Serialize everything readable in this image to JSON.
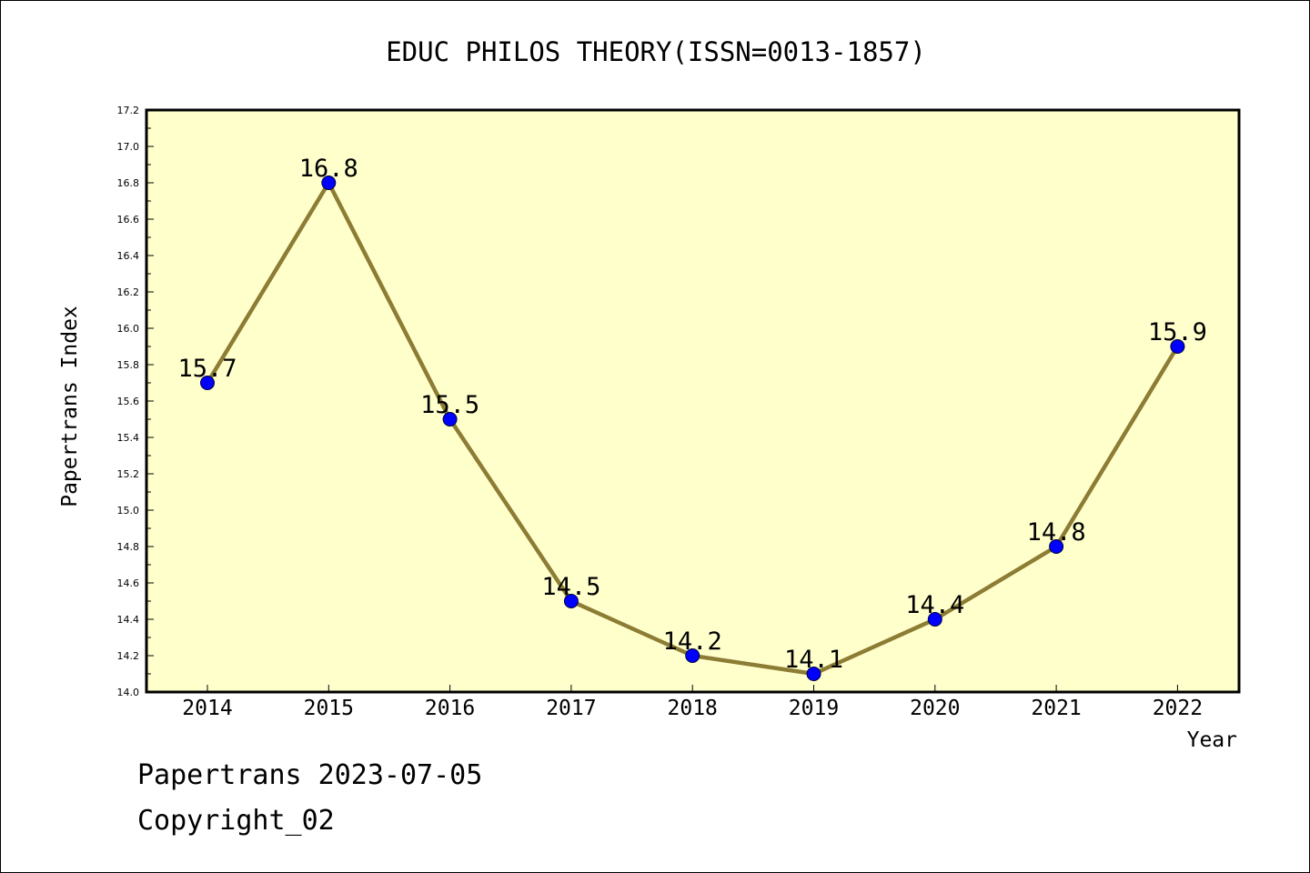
{
  "chart_data": {
    "type": "line",
    "title": "EDUC PHILOS THEORY(ISSN=0013-1857)",
    "xlabel": "Year",
    "ylabel": "Papertrans Index",
    "categories": [
      "2014",
      "2015",
      "2016",
      "2017",
      "2018",
      "2019",
      "2020",
      "2021",
      "2022"
    ],
    "series": [
      {
        "values": [
          15.7,
          16.8,
          15.5,
          14.5,
          14.2,
          14.1,
          14.4,
          14.8,
          15.9
        ],
        "data_labels": [
          "15.7",
          "16.8",
          "15.5",
          "14.5",
          "14.2",
          "14.1",
          "14.4",
          "14.8",
          "15.9"
        ]
      }
    ],
    "ylim": [
      14.0,
      17.2
    ],
    "yticks": [
      "14.0",
      "14.2",
      "14.4",
      "14.6",
      "14.8",
      "15.0",
      "15.2",
      "15.4",
      "15.6",
      "15.8",
      "16.0",
      "16.2",
      "16.4",
      "16.6",
      "16.8",
      "17.0",
      "17.2"
    ],
    "grid": false,
    "legend": "none",
    "colors": {
      "plot_background": "#ffffcc",
      "line": "#8c7c34",
      "marker": "#0000ff"
    }
  },
  "footer": {
    "line1": "Papertrans 2023-07-05",
    "line2": "Copyright_02"
  }
}
